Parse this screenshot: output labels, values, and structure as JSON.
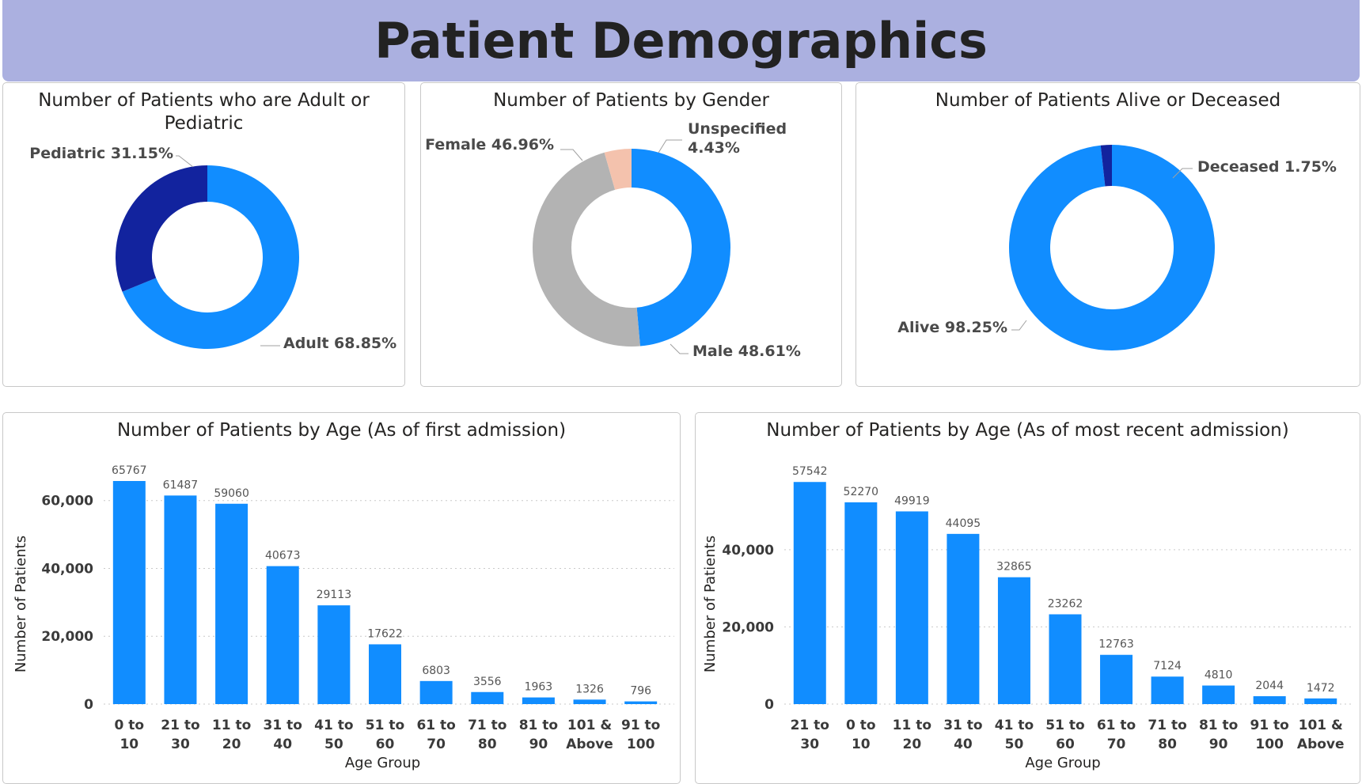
{
  "page": {
    "title": "Patient Demographics"
  },
  "colors": {
    "primary": "#118dff",
    "dark": "#12239e",
    "grey": "#b3b3b3",
    "peach": "#f4c2ad",
    "header_bg": "#abb0e0"
  },
  "chart_data": [
    {
      "type": "donut",
      "title": "Number of Patients who are Adult or Pediatric",
      "slices": [
        {
          "name": "Adult",
          "value": 68.85,
          "label": "Adult 68.85%",
          "color": "#118dff"
        },
        {
          "name": "Pediatric",
          "value": 31.15,
          "label": "Pediatric 31.15%",
          "color": "#12239e"
        }
      ]
    },
    {
      "type": "donut",
      "title": "Number of Patients by Gender",
      "slices": [
        {
          "name": "Male",
          "value": 48.61,
          "label": "Male 48.61%",
          "color": "#118dff"
        },
        {
          "name": "Female",
          "value": 46.96,
          "label": "Female 46.96%",
          "color": "#b3b3b3"
        },
        {
          "name": "Unspecified",
          "value": 4.43,
          "label": [
            "Unspecified",
            "4.43%"
          ],
          "color": "#f4c2ad"
        }
      ]
    },
    {
      "type": "donut",
      "title": "Number of Patients Alive or Deceased",
      "slices": [
        {
          "name": "Alive",
          "value": 98.25,
          "label": "Alive 98.25%",
          "color": "#118dff"
        },
        {
          "name": "Deceased",
          "value": 1.75,
          "label": "Deceased 1.75%",
          "color": "#12239e"
        }
      ]
    },
    {
      "type": "bar",
      "title": "Number of Patients by Age (As of first admission)",
      "xlabel": "Age Group",
      "ylabel": "Number of Patients",
      "ylim": [
        0,
        66000
      ],
      "yticks": [
        0,
        20000,
        40000,
        60000
      ],
      "yticklabels": [
        "0",
        "20,000",
        "40,000",
        "60,000"
      ],
      "categories": [
        [
          "0 to",
          "10"
        ],
        [
          "21 to",
          "30"
        ],
        [
          "11 to",
          "20"
        ],
        [
          "31 to",
          "40"
        ],
        [
          "41 to",
          "50"
        ],
        [
          "51 to",
          "60"
        ],
        [
          "61 to",
          "70"
        ],
        [
          "71 to",
          "80"
        ],
        [
          "81 to",
          "90"
        ],
        [
          "101 &",
          "Above"
        ],
        [
          "91 to",
          "100"
        ]
      ],
      "values": [
        65767,
        61487,
        59060,
        40673,
        29113,
        17622,
        6803,
        3556,
        1963,
        1326,
        796
      ]
    },
    {
      "type": "bar",
      "title": "Number of Patients by Age (As of most recent admission)",
      "xlabel": "Age Group",
      "ylabel": "Number of Patients",
      "ylim": [
        0,
        58000
      ],
      "yticks": [
        0,
        20000,
        40000,
        60000
      ],
      "yticklabels": [
        "0",
        "20,000",
        "40,000",
        "60,000"
      ],
      "categories": [
        [
          "21 to",
          "30"
        ],
        [
          "0 to",
          "10"
        ],
        [
          "11 to",
          "20"
        ],
        [
          "31 to",
          "40"
        ],
        [
          "41 to",
          "50"
        ],
        [
          "51 to",
          "60"
        ],
        [
          "61 to",
          "70"
        ],
        [
          "71 to",
          "80"
        ],
        [
          "81 to",
          "90"
        ],
        [
          "91 to",
          "100"
        ],
        [
          "101 &",
          "Above"
        ]
      ],
      "values": [
        57542,
        52270,
        49919,
        44095,
        32865,
        23262,
        12763,
        7124,
        4810,
        2044,
        1472
      ]
    }
  ]
}
